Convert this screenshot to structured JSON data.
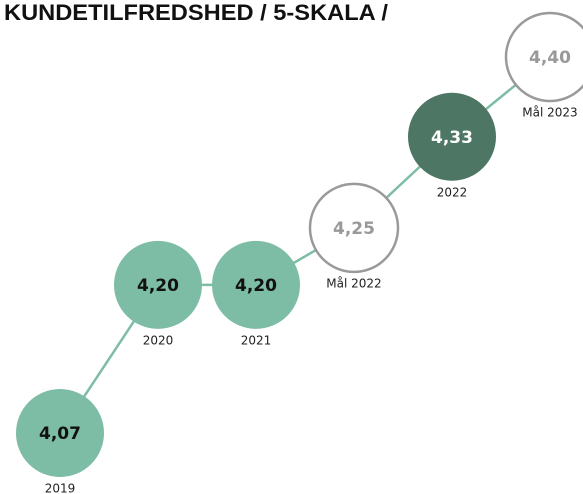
{
  "chart_data": {
    "type": "line",
    "title": "KUNDETILFREDSHED / 5-SKALA /",
    "categories": [
      "2019",
      "2020",
      "2021",
      "Mål 2022",
      "2022",
      "Mål 2023"
    ],
    "values": [
      4.07,
      4.2,
      4.2,
      4.25,
      4.33,
      4.4
    ],
    "value_labels": [
      "4,07",
      "4,20",
      "4,20",
      "4,25",
      "4,33",
      "4,40"
    ],
    "line_color": "#7dbca5",
    "point_colors": [
      "#7dbca5",
      "#7dbca5",
      "#7dbca5",
      "#ffffff",
      "#4d7665",
      "#ffffff"
    ]
  }
}
